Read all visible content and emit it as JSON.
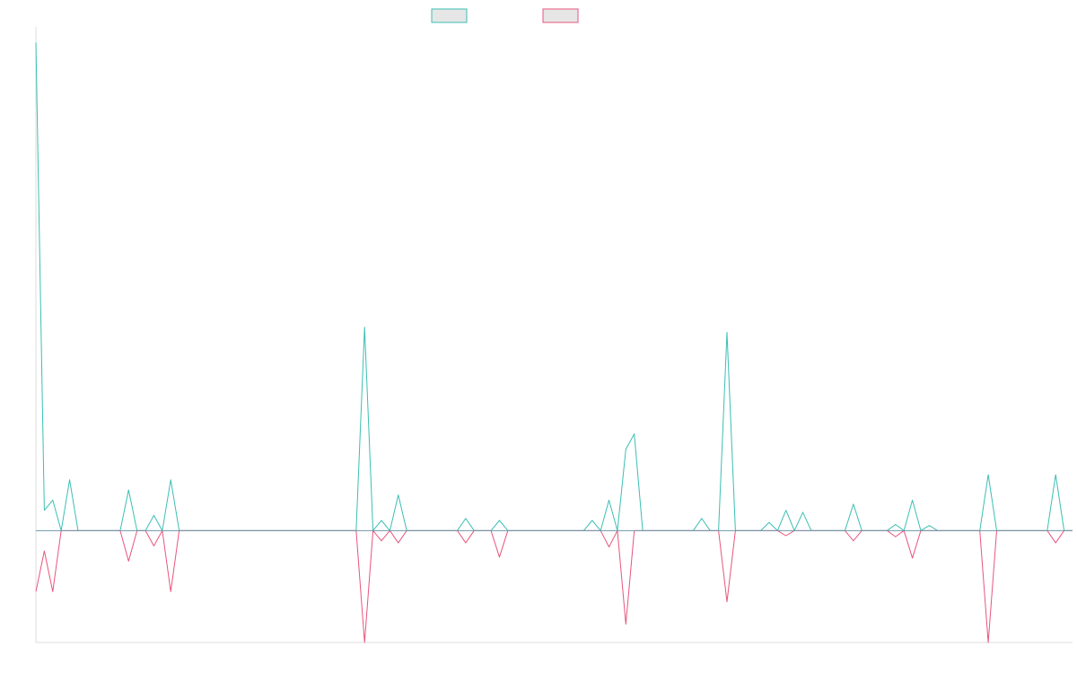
{
  "chart_data": {
    "type": "line",
    "title": "",
    "xlabel": "",
    "ylabel": "",
    "grid": false,
    "legend": "top-center",
    "x_count": 124,
    "ylim": [
      -11,
      49
    ],
    "baseline": 0,
    "series": [
      {
        "color": "#3bbfb4",
        "points": [
          [
            0,
            48
          ],
          [
            1,
            2
          ],
          [
            2,
            3
          ],
          [
            3,
            0
          ],
          [
            4,
            5
          ],
          [
            5,
            0
          ],
          [
            6,
            0
          ],
          [
            7,
            0
          ],
          [
            8,
            0
          ],
          [
            9,
            0
          ],
          [
            10,
            0
          ],
          [
            11,
            4
          ],
          [
            12,
            0
          ],
          [
            13,
            0
          ],
          [
            14,
            1.5
          ],
          [
            15,
            0
          ],
          [
            16,
            5
          ],
          [
            17,
            0
          ],
          [
            18,
            0
          ],
          [
            38,
            0
          ],
          [
            39,
            20
          ],
          [
            40,
            0
          ],
          [
            41,
            1
          ],
          [
            42,
            0
          ],
          [
            43,
            3.5
          ],
          [
            44,
            0
          ],
          [
            50,
            0
          ],
          [
            51,
            1.2
          ],
          [
            52,
            0
          ],
          [
            54,
            0
          ],
          [
            55,
            1
          ],
          [
            56,
            0
          ],
          [
            65,
            0
          ],
          [
            66,
            1
          ],
          [
            67,
            0
          ],
          [
            68,
            3
          ],
          [
            69,
            0
          ],
          [
            70,
            8
          ],
          [
            71,
            9.5
          ],
          [
            72,
            0
          ],
          [
            78,
            0
          ],
          [
            79,
            1.2
          ],
          [
            80,
            0
          ],
          [
            81,
            0
          ],
          [
            82,
            19.5
          ],
          [
            83,
            0
          ],
          [
            86,
            0
          ],
          [
            87,
            0.8
          ],
          [
            88,
            0
          ],
          [
            89,
            2
          ],
          [
            90,
            0
          ],
          [
            91,
            1.8
          ],
          [
            92,
            0
          ],
          [
            96,
            0
          ],
          [
            97,
            2.6
          ],
          [
            98,
            0
          ],
          [
            101,
            0
          ],
          [
            102,
            0.6
          ],
          [
            103,
            0
          ],
          [
            104,
            3
          ],
          [
            105,
            0
          ],
          [
            106,
            0.5
          ],
          [
            107,
            0
          ],
          [
            112,
            0
          ],
          [
            113,
            5.5
          ],
          [
            114,
            0
          ],
          [
            115,
            0
          ],
          [
            116,
            0
          ],
          [
            120,
            0
          ],
          [
            121,
            5.5
          ],
          [
            122,
            0
          ],
          [
            123,
            0
          ]
        ]
      },
      {
        "color": "#e8557e",
        "points": [
          [
            0,
            -6
          ],
          [
            1,
            -2
          ],
          [
            2,
            -6
          ],
          [
            3,
            0
          ],
          [
            4,
            0
          ],
          [
            5,
            0
          ],
          [
            6,
            0
          ],
          [
            7,
            0
          ],
          [
            8,
            0
          ],
          [
            9,
            0
          ],
          [
            10,
            0
          ],
          [
            11,
            -3
          ],
          [
            12,
            0
          ],
          [
            13,
            0
          ],
          [
            14,
            -1.5
          ],
          [
            15,
            0
          ],
          [
            16,
            -6
          ],
          [
            17,
            0
          ],
          [
            18,
            0
          ],
          [
            38,
            0
          ],
          [
            39,
            -11
          ],
          [
            40,
            0
          ],
          [
            41,
            -1
          ],
          [
            42,
            0
          ],
          [
            43,
            -1.2
          ],
          [
            44,
            0
          ],
          [
            50,
            0
          ],
          [
            51,
            -1.2
          ],
          [
            52,
            0
          ],
          [
            54,
            0
          ],
          [
            55,
            -2.6
          ],
          [
            56,
            0
          ],
          [
            65,
            0
          ],
          [
            66,
            0
          ],
          [
            67,
            0
          ],
          [
            68,
            -1.6
          ],
          [
            69,
            0
          ],
          [
            70,
            -9.2
          ],
          [
            71,
            0
          ],
          [
            72,
            0
          ],
          [
            78,
            0
          ],
          [
            79,
            0
          ],
          [
            80,
            0
          ],
          [
            81,
            0
          ],
          [
            82,
            -7
          ],
          [
            83,
            0
          ],
          [
            86,
            0
          ],
          [
            87,
            0
          ],
          [
            88,
            0
          ],
          [
            89,
            -0.5
          ],
          [
            90,
            0
          ],
          [
            91,
            0
          ],
          [
            92,
            0
          ],
          [
            96,
            0
          ],
          [
            97,
            -1
          ],
          [
            98,
            0
          ],
          [
            101,
            0
          ],
          [
            102,
            -0.6
          ],
          [
            103,
            0
          ],
          [
            104,
            -2.7
          ],
          [
            105,
            0
          ],
          [
            106,
            0
          ],
          [
            107,
            0
          ],
          [
            112,
            0
          ],
          [
            113,
            -11
          ],
          [
            114,
            0
          ],
          [
            115,
            0
          ],
          [
            116,
            0
          ],
          [
            120,
            0
          ],
          [
            121,
            -1.2
          ],
          [
            122,
            0
          ],
          [
            123,
            0
          ]
        ]
      }
    ],
    "legend_colors": [
      "#3bbfb4",
      "#e8557e"
    ]
  }
}
